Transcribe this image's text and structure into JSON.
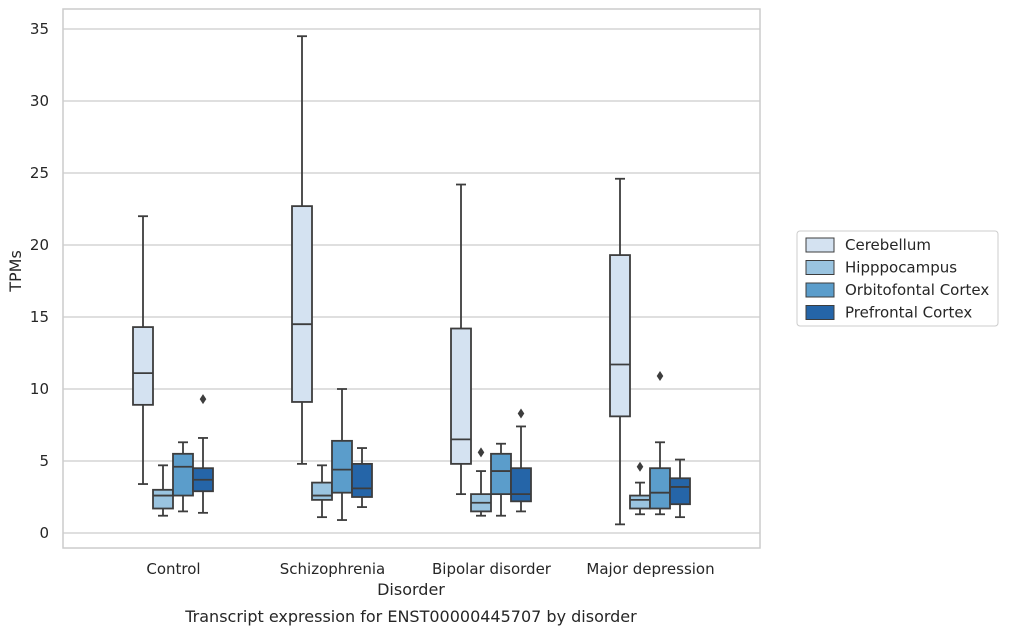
{
  "chart_data": {
    "type": "box",
    "title": "",
    "caption": "Transcript expression for ENST00000445707 by disorder",
    "xlabel": "Disorder",
    "ylabel": "TPMs",
    "ylim": [
      -1,
      36
    ],
    "yticks": [
      0,
      5,
      10,
      15,
      20,
      25,
      30,
      35
    ],
    "grid": "horizontal",
    "legend_position": "right",
    "categories": [
      "Control",
      "Schizophrenia",
      "Bipolar disorder",
      "Major depression"
    ],
    "series": [
      {
        "name": "Cerebellum",
        "color": "#d4e2f1",
        "boxes": [
          {
            "whislo": 3.4,
            "q1": 8.9,
            "med": 11.1,
            "q3": 14.3,
            "whishi": 22.0,
            "fliers": []
          },
          {
            "whislo": 4.8,
            "q1": 9.1,
            "med": 14.5,
            "q3": 22.7,
            "whishi": 34.5,
            "fliers": []
          },
          {
            "whislo": 2.7,
            "q1": 4.8,
            "med": 6.5,
            "q3": 14.2,
            "whishi": 24.2,
            "fliers": []
          },
          {
            "whislo": 0.6,
            "q1": 8.1,
            "med": 11.7,
            "q3": 19.3,
            "whishi": 24.6,
            "fliers": []
          }
        ]
      },
      {
        "name": "Hipppocampus",
        "color": "#9ac4e0",
        "boxes": [
          {
            "whislo": 1.2,
            "q1": 1.7,
            "med": 2.6,
            "q3": 3.0,
            "whishi": 4.7,
            "fliers": []
          },
          {
            "whislo": 1.1,
            "q1": 2.3,
            "med": 2.6,
            "q3": 3.5,
            "whishi": 4.7,
            "fliers": []
          },
          {
            "whislo": 1.2,
            "q1": 1.5,
            "med": 2.1,
            "q3": 2.7,
            "whishi": 4.3,
            "fliers": [
              5.6
            ]
          },
          {
            "whislo": 1.3,
            "q1": 1.7,
            "med": 2.3,
            "q3": 2.6,
            "whishi": 3.5,
            "fliers": [
              4.6
            ]
          }
        ]
      },
      {
        "name": "Orbitofontal Cortex",
        "color": "#5b9dcb",
        "boxes": [
          {
            "whislo": 1.5,
            "q1": 2.6,
            "med": 4.6,
            "q3": 5.5,
            "whishi": 6.3,
            "fliers": []
          },
          {
            "whislo": 0.9,
            "q1": 2.8,
            "med": 4.4,
            "q3": 6.4,
            "whishi": 10.0,
            "fliers": []
          },
          {
            "whislo": 1.2,
            "q1": 2.7,
            "med": 4.3,
            "q3": 5.5,
            "whishi": 6.2,
            "fliers": []
          },
          {
            "whislo": 1.3,
            "q1": 1.7,
            "med": 2.8,
            "q3": 4.5,
            "whishi": 6.3,
            "fliers": [
              10.9
            ]
          }
        ]
      },
      {
        "name": "Prefrontal Cortex",
        "color": "#2565a8",
        "boxes": [
          {
            "whislo": 1.4,
            "q1": 2.9,
            "med": 3.7,
            "q3": 4.5,
            "whishi": 6.6,
            "fliers": [
              9.3
            ]
          },
          {
            "whislo": 1.8,
            "q1": 2.5,
            "med": 3.1,
            "q3": 4.8,
            "whishi": 5.9,
            "fliers": []
          },
          {
            "whislo": 1.5,
            "q1": 2.2,
            "med": 2.7,
            "q3": 4.5,
            "whishi": 7.4,
            "fliers": [
              8.3
            ]
          },
          {
            "whislo": 1.1,
            "q1": 2.0,
            "med": 3.2,
            "q3": 3.8,
            "whishi": 5.1,
            "fliers": []
          }
        ]
      }
    ]
  }
}
